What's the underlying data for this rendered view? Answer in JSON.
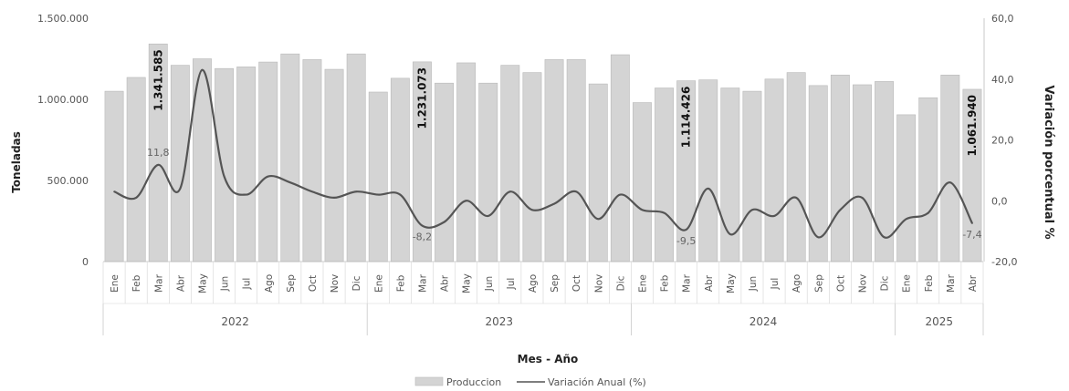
{
  "chart_data": {
    "type": "bar",
    "xlabel": "Mes - Año",
    "ylabel": "Toneladas",
    "y2label": "Variación porcentual %",
    "ylim": [
      0,
      1500000
    ],
    "y2lim": [
      -20,
      60
    ],
    "yticks": [
      "0",
      "500.000",
      "1.000.000",
      "1.500.000"
    ],
    "y2ticks": [
      "-20,0",
      "0,0",
      "20,0",
      "40,0",
      "60,0"
    ],
    "categories": [
      "Ene",
      "Feb",
      "Mar",
      "Abr",
      "May",
      "Jun",
      "Jul",
      "Ago",
      "Sep",
      "Oct",
      "Nov",
      "Dic",
      "Ene",
      "Feb",
      "Mar",
      "Abr",
      "May",
      "Jun",
      "Jul",
      "Ago",
      "Sep",
      "Oct",
      "Nov",
      "Dic",
      "Ene",
      "Feb",
      "Mar",
      "Abr",
      "May",
      "Jun",
      "Jul",
      "Ago",
      "Sep",
      "Oct",
      "Nov",
      "Dic",
      "Ene",
      "Feb",
      "Mar",
      "Abr"
    ],
    "years": [
      {
        "label": "2022",
        "start": 0,
        "count": 12
      },
      {
        "label": "2023",
        "start": 12,
        "count": 12
      },
      {
        "label": "2024",
        "start": 24,
        "count": 12
      },
      {
        "label": "2025",
        "start": 36,
        "count": 4
      }
    ],
    "series": [
      {
        "name": "Produccion",
        "type": "bar",
        "color": "#d4d4d4",
        "values": [
          1050000,
          1135000,
          1341585,
          1210000,
          1250000,
          1190000,
          1200000,
          1230000,
          1280000,
          1245000,
          1185000,
          1280000,
          1045000,
          1130000,
          1231073,
          1100000,
          1225000,
          1100000,
          1210000,
          1165000,
          1245000,
          1245000,
          1095000,
          1275000,
          980000,
          1070000,
          1114426,
          1120000,
          1070000,
          1050000,
          1125000,
          1165000,
          1085000,
          1150000,
          1090000,
          1110000,
          905000,
          1010000,
          1150000,
          1061940
        ]
      },
      {
        "name": "Variación Anual (%)",
        "type": "line",
        "color": "#555555",
        "values": [
          3,
          1,
          11.8,
          4,
          43,
          8,
          2,
          8,
          6,
          3,
          1,
          3,
          2,
          2,
          -8.2,
          -7,
          0,
          -5,
          3,
          -3,
          -1,
          3,
          -6,
          2,
          -3,
          -4,
          -9.5,
          4,
          -11,
          -3,
          -5,
          1,
          -12,
          -3,
          1,
          -12,
          -6,
          -4,
          6,
          -7.4
        ]
      }
    ],
    "bar_labels": [
      {
        "index": 2,
        "text": "1.341.585"
      },
      {
        "index": 14,
        "text": "1.231.073"
      },
      {
        "index": 26,
        "text": "1.114.426"
      },
      {
        "index": 39,
        "text": "1.061.940"
      }
    ],
    "line_labels": [
      {
        "index": 2,
        "text": "11,8"
      },
      {
        "index": 14,
        "text": "-8,2"
      },
      {
        "index": 26,
        "text": "-9,5"
      },
      {
        "index": 39,
        "text": "-7,4"
      }
    ],
    "legend": [
      "Produccion",
      "Variación Anual (%)"
    ],
    "legend_position": "bottom",
    "grid": false
  }
}
